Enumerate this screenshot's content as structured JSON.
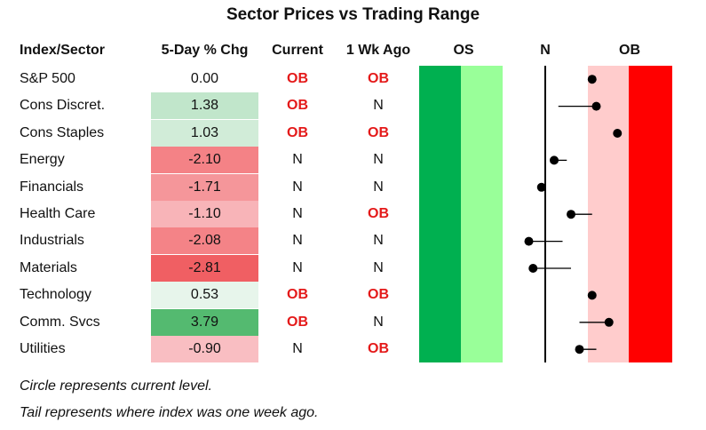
{
  "title": "Sector Prices vs Trading Range",
  "headers": {
    "name": "Index/Sector",
    "chg": "5-Day % Chg",
    "current": "Current",
    "week": "1 Wk Ago",
    "os": "OS",
    "n": "N",
    "ob": "OB"
  },
  "rows": [
    {
      "name": "S&P 500",
      "chg": "0.00",
      "current": "OB",
      "week": "OB"
    },
    {
      "name": "Cons Discret.",
      "chg": "1.38",
      "current": "OB",
      "week": "N"
    },
    {
      "name": "Cons Staples",
      "chg": "1.03",
      "current": "OB",
      "week": "OB"
    },
    {
      "name": "Energy",
      "chg": "-2.10",
      "current": "N",
      "week": "N"
    },
    {
      "name": "Financials",
      "chg": "-1.71",
      "current": "N",
      "week": "N"
    },
    {
      "name": "Health Care",
      "chg": "-1.10",
      "current": "N",
      "week": "OB"
    },
    {
      "name": "Industrials",
      "chg": "-2.08",
      "current": "N",
      "week": "N"
    },
    {
      "name": "Materials",
      "chg": "-2.81",
      "current": "N",
      "week": "N"
    },
    {
      "name": "Technology",
      "chg": "0.53",
      "current": "OB",
      "week": "OB"
    },
    {
      "name": "Comm. Svcs",
      "chg": "3.79",
      "current": "OB",
      "week": "N"
    },
    {
      "name": "Utilities",
      "chg": "-0.90",
      "current": "N",
      "week": "OB"
    }
  ],
  "chart_data": {
    "type": "scatter",
    "title": "Sector Prices vs Trading Range",
    "categories": [
      "S&P 500",
      "Cons Discret.",
      "Cons Staples",
      "Energy",
      "Financials",
      "Health Care",
      "Industrials",
      "Materials",
      "Technology",
      "Comm. Svcs",
      "Utilities"
    ],
    "five_day_pct_chg": [
      0.0,
      1.38,
      1.03,
      -2.1,
      -1.71,
      -1.1,
      -2.08,
      -2.81,
      0.53,
      3.79,
      -0.9
    ],
    "xlim": [
      -3,
      3
    ],
    "zones": [
      "OS",
      "N",
      "OB"
    ],
    "series": [
      {
        "name": "current",
        "values": [
          1.1,
          1.2,
          1.7,
          0.2,
          -0.1,
          0.6,
          -0.4,
          -0.3,
          1.1,
          1.5,
          0.8
        ]
      },
      {
        "name": "one_week_ago",
        "values": [
          1.1,
          0.3,
          1.7,
          0.5,
          -0.1,
          1.1,
          0.4,
          0.6,
          1.1,
          0.8,
          1.2
        ]
      }
    ],
    "zone_colors": {
      "os_dark": "#00b050",
      "os_light": "#99ff99",
      "ob_light": "#ffcccc",
      "ob_dark": "#ff0000"
    },
    "notes": [
      "Circle represents current level.",
      "Tail represents where index was one week ago."
    ]
  }
}
